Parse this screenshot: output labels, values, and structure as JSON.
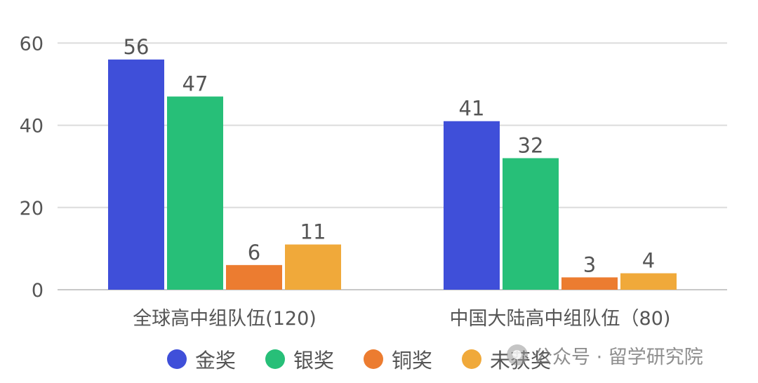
{
  "chart_data": {
    "type": "bar",
    "title": "",
    "xlabel": "",
    "ylabel": "",
    "categories": [
      "全球高中组队伍(120)",
      "中国大陆高中组队伍（80)"
    ],
    "series": [
      {
        "name": "金奖",
        "values": [
          56,
          41
        ],
        "color": "#3f4fd9"
      },
      {
        "name": "银奖",
        "values": [
          47,
          32
        ],
        "color": "#27bf78"
      },
      {
        "name": "铜奖",
        "values": [
          6,
          3
        ],
        "color": "#ec7c30"
      },
      {
        "name": "未获奖",
        "values": [
          11,
          4
        ],
        "color": "#f0a93a"
      }
    ],
    "yticks": [
      0,
      20,
      40,
      60
    ],
    "ylim": [
      0,
      62
    ],
    "grid": true,
    "data_labels": true,
    "legend_position": "bottom"
  },
  "watermark": {
    "text": "公众号 · 留学研究院",
    "icon": "wechat-icon"
  }
}
